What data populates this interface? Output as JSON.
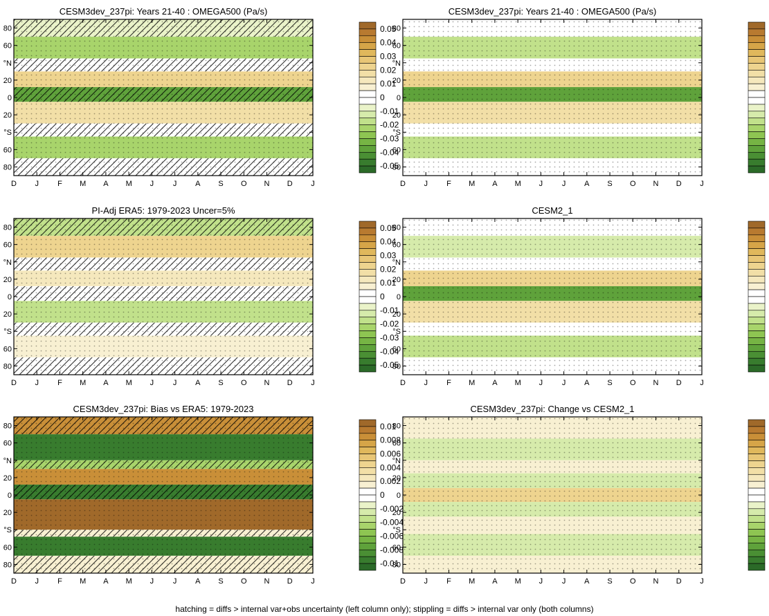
{
  "footer": "hatching = diffs > internal var+obs uncertainty (left column only); stippling = diffs > internal var only (both columns)",
  "palettes": {
    "brown_green_22": [
      "#a0692a",
      "#b87a30",
      "#c98f38",
      "#d6a548",
      "#e0b85c",
      "#e8c676",
      "#eed48f",
      "#f2dfa7",
      "#f5e8bd",
      "#f8f0d2",
      "#ffffff",
      "#ffffff",
      "#eaf3c9",
      "#d6ebab",
      "#c1e18b",
      "#a8d46b",
      "#8ec552",
      "#76b444",
      "#5fa23b",
      "#4a8f34",
      "#387c2e",
      "#2b6a28"
    ]
  },
  "colorbars": {
    "main": {
      "labels": [
        "0.05",
        "0.04",
        "0.03",
        "0.02",
        "0.01",
        "0",
        "-0.01",
        "-0.02",
        "-0.03",
        "-0.04",
        "-0.05"
      ]
    },
    "diff": {
      "labels": [
        "0.01",
        "0.008",
        "0.006",
        "0.004",
        "0.002",
        "0",
        "-0.002",
        "-0.004",
        "-0.006",
        "-0.008",
        "-0.01"
      ]
    }
  },
  "axes": {
    "month_ticks": [
      "D",
      "J",
      "F",
      "M",
      "A",
      "M",
      "J",
      "J",
      "A",
      "S",
      "O",
      "N",
      "D",
      "J"
    ],
    "lat_ticks": [
      "80",
      "60",
      "°N",
      "20",
      "0",
      "20",
      "°S",
      "60",
      "80"
    ]
  },
  "chart_data": [
    {
      "type": "heatmap",
      "title": "CESM3dev_237pi: Years 21-40 : OMEGA500 (Pa/s)",
      "colorbar": "main",
      "hatch": true,
      "stipple": true,
      "bands": [
        {
          "lat_from": 90,
          "lat_to": 70,
          "value": -0.005
        },
        {
          "lat_from": 70,
          "lat_to": 45,
          "value": -0.02
        },
        {
          "lat_from": 45,
          "lat_to": 30,
          "value": 0.005
        },
        {
          "lat_from": 30,
          "lat_to": 12,
          "value": 0.025
        },
        {
          "lat_from": 12,
          "lat_to": -5,
          "value": -0.035
        },
        {
          "lat_from": -5,
          "lat_to": -30,
          "value": 0.02
        },
        {
          "lat_from": -30,
          "lat_to": -45,
          "value": 0.005
        },
        {
          "lat_from": -45,
          "lat_to": -70,
          "value": -0.02
        },
        {
          "lat_from": -70,
          "lat_to": -90,
          "value": 0.005
        }
      ]
    },
    {
      "type": "heatmap",
      "title": "CESM3dev_237pi: Years 21-40 : OMEGA500 (Pa/s)",
      "colorbar": "main",
      "hatch": false,
      "stipple": true,
      "bands": [
        {
          "lat_from": 90,
          "lat_to": 70,
          "value": 0.004
        },
        {
          "lat_from": 70,
          "lat_to": 45,
          "value": -0.015
        },
        {
          "lat_from": 45,
          "lat_to": 30,
          "value": 0.004
        },
        {
          "lat_from": 30,
          "lat_to": 12,
          "value": 0.025
        },
        {
          "lat_from": 12,
          "lat_to": -5,
          "value": -0.035
        },
        {
          "lat_from": -5,
          "lat_to": -30,
          "value": 0.02
        },
        {
          "lat_from": -30,
          "lat_to": -45,
          "value": 0.005
        },
        {
          "lat_from": -45,
          "lat_to": -70,
          "value": -0.015
        },
        {
          "lat_from": -70,
          "lat_to": -90,
          "value": 0.005
        }
      ]
    },
    {
      "type": "heatmap",
      "title": "PI-Adj ERA5: 1979-2023 Uncer=5%",
      "colorbar": "main",
      "hatch": true,
      "stipple": true,
      "bands": [
        {
          "lat_from": 90,
          "lat_to": 70,
          "value": -0.015
        },
        {
          "lat_from": 70,
          "lat_to": 45,
          "value": 0.025
        },
        {
          "lat_from": 45,
          "lat_to": 30,
          "value": 0.005
        },
        {
          "lat_from": 30,
          "lat_to": 12,
          "value": 0.015
        },
        {
          "lat_from": 12,
          "lat_to": -5,
          "value": 0.002
        },
        {
          "lat_from": -5,
          "lat_to": -30,
          "value": -0.015
        },
        {
          "lat_from": -30,
          "lat_to": -45,
          "value": 0.002
        },
        {
          "lat_from": -45,
          "lat_to": -70,
          "value": 0.01
        },
        {
          "lat_from": -70,
          "lat_to": -90,
          "value": 0.005
        }
      ]
    },
    {
      "type": "heatmap",
      "title": "CESM2_1",
      "colorbar": "main",
      "hatch": false,
      "stipple": true,
      "bands": [
        {
          "lat_from": 90,
          "lat_to": 70,
          "value": 0.004
        },
        {
          "lat_from": 70,
          "lat_to": 45,
          "value": -0.012
        },
        {
          "lat_from": 45,
          "lat_to": 30,
          "value": 0.004
        },
        {
          "lat_from": 30,
          "lat_to": 12,
          "value": 0.025
        },
        {
          "lat_from": 12,
          "lat_to": -5,
          "value": -0.035
        },
        {
          "lat_from": -5,
          "lat_to": -30,
          "value": 0.02
        },
        {
          "lat_from": -30,
          "lat_to": -45,
          "value": 0.004
        },
        {
          "lat_from": -45,
          "lat_to": -70,
          "value": -0.015
        },
        {
          "lat_from": -70,
          "lat_to": -90,
          "value": 0.005
        }
      ]
    },
    {
      "type": "heatmap",
      "title": "CESM3dev_237pi: Bias vs ERA5: 1979-2023",
      "colorbar": "diff",
      "hatch": true,
      "stipple": true,
      "bands": [
        {
          "lat_from": 90,
          "lat_to": 70,
          "value": 0.009
        },
        {
          "lat_from": 70,
          "lat_to": 40,
          "value": -0.01
        },
        {
          "lat_from": 40,
          "lat_to": 30,
          "value": -0.004
        },
        {
          "lat_from": 30,
          "lat_to": 12,
          "value": 0.008
        },
        {
          "lat_from": 12,
          "lat_to": -5,
          "value": -0.01
        },
        {
          "lat_from": -5,
          "lat_to": -40,
          "value": 0.01
        },
        {
          "lat_from": -40,
          "lat_to": -48,
          "value": 0.002
        },
        {
          "lat_from": -48,
          "lat_to": -70,
          "value": -0.01
        },
        {
          "lat_from": -70,
          "lat_to": -90,
          "value": 0.001
        }
      ]
    },
    {
      "type": "heatmap",
      "title": "CESM3dev_237pi: Change vs CESM2_1",
      "colorbar": "diff",
      "hatch": false,
      "stipple": true,
      "bands": [
        {
          "lat_from": 90,
          "lat_to": 65,
          "value": 0.001
        },
        {
          "lat_from": 65,
          "lat_to": 40,
          "value": -0.002
        },
        {
          "lat_from": 40,
          "lat_to": 25,
          "value": 0.001
        },
        {
          "lat_from": 25,
          "lat_to": 8,
          "value": -0.003
        },
        {
          "lat_from": 8,
          "lat_to": -8,
          "value": 0.004
        },
        {
          "lat_from": -8,
          "lat_to": -25,
          "value": -0.003
        },
        {
          "lat_from": -25,
          "lat_to": -45,
          "value": 0.001
        },
        {
          "lat_from": -45,
          "lat_to": -70,
          "value": -0.002
        },
        {
          "lat_from": -70,
          "lat_to": -90,
          "value": 0.001
        }
      ]
    }
  ]
}
